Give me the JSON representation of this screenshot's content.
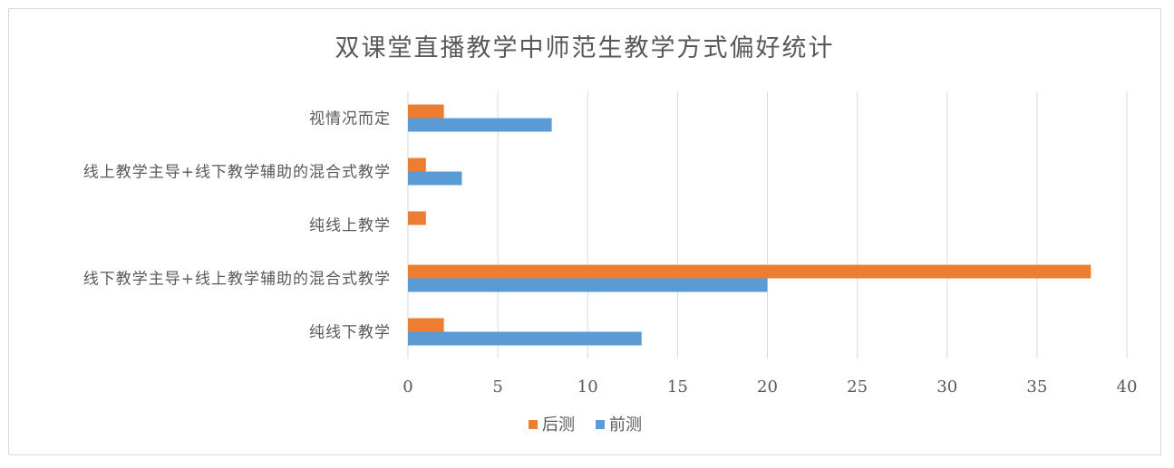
{
  "chart_data": {
    "type": "bar",
    "orientation": "horizontal",
    "title": "双课堂直播教学中师范生教学方式偏好统计",
    "xlabel": "",
    "ylabel": "",
    "categories": [
      "视情况而定",
      "线上教学主导+线下教学辅助的混合式教学",
      "纯线上教学",
      "线下教学主导+线上教学辅助的混合式教学",
      "纯线下教学"
    ],
    "series": [
      {
        "name": "后测",
        "color": "#ed7d31",
        "values": [
          2,
          1,
          1,
          38,
          2
        ]
      },
      {
        "name": "前测",
        "color": "#5b9bd5",
        "values": [
          8,
          3,
          0,
          20,
          13
        ]
      }
    ],
    "xlim": [
      0,
      40
    ],
    "xticks": [
      0,
      5,
      10,
      15,
      20,
      25,
      30,
      35,
      40
    ],
    "grid": "vertical",
    "legend_position": "bottom"
  }
}
